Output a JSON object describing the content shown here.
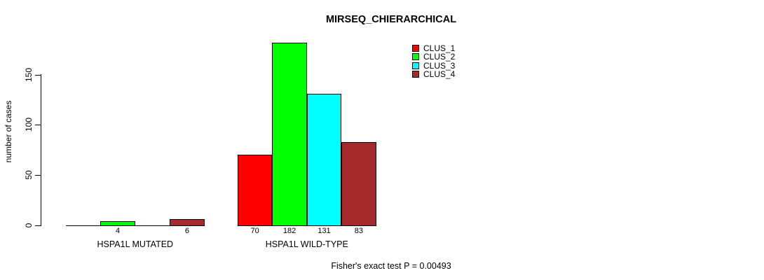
{
  "chart_data": {
    "type": "bar",
    "title": "MIRSEQ_CHIERARCHICAL",
    "ylabel": "number of cases",
    "xlabel": "",
    "yticks": [
      0,
      50,
      100,
      150
    ],
    "ylim": [
      0,
      190
    ],
    "grid": false,
    "legend_position": "top-right",
    "categories": [
      "HSPA1L MUTATED",
      "HSPA1L WILD-TYPE"
    ],
    "series": [
      {
        "name": "CLUS_1",
        "color": "#FF0000",
        "values": [
          0,
          70
        ]
      },
      {
        "name": "CLUS_2",
        "color": "#00FF00",
        "values": [
          4,
          182
        ]
      },
      {
        "name": "CLUS_3",
        "color": "#00FFFF",
        "values": [
          0,
          131
        ]
      },
      {
        "name": "CLUS_4",
        "color": "#A52A2A",
        "values": [
          6,
          83
        ]
      }
    ],
    "bar_value_labels": [
      [
        "",
        "4",
        "",
        "6"
      ],
      [
        "70",
        "182",
        "131",
        "83"
      ]
    ],
    "footnote": "Fisher's exact test P = 0.00493"
  }
}
